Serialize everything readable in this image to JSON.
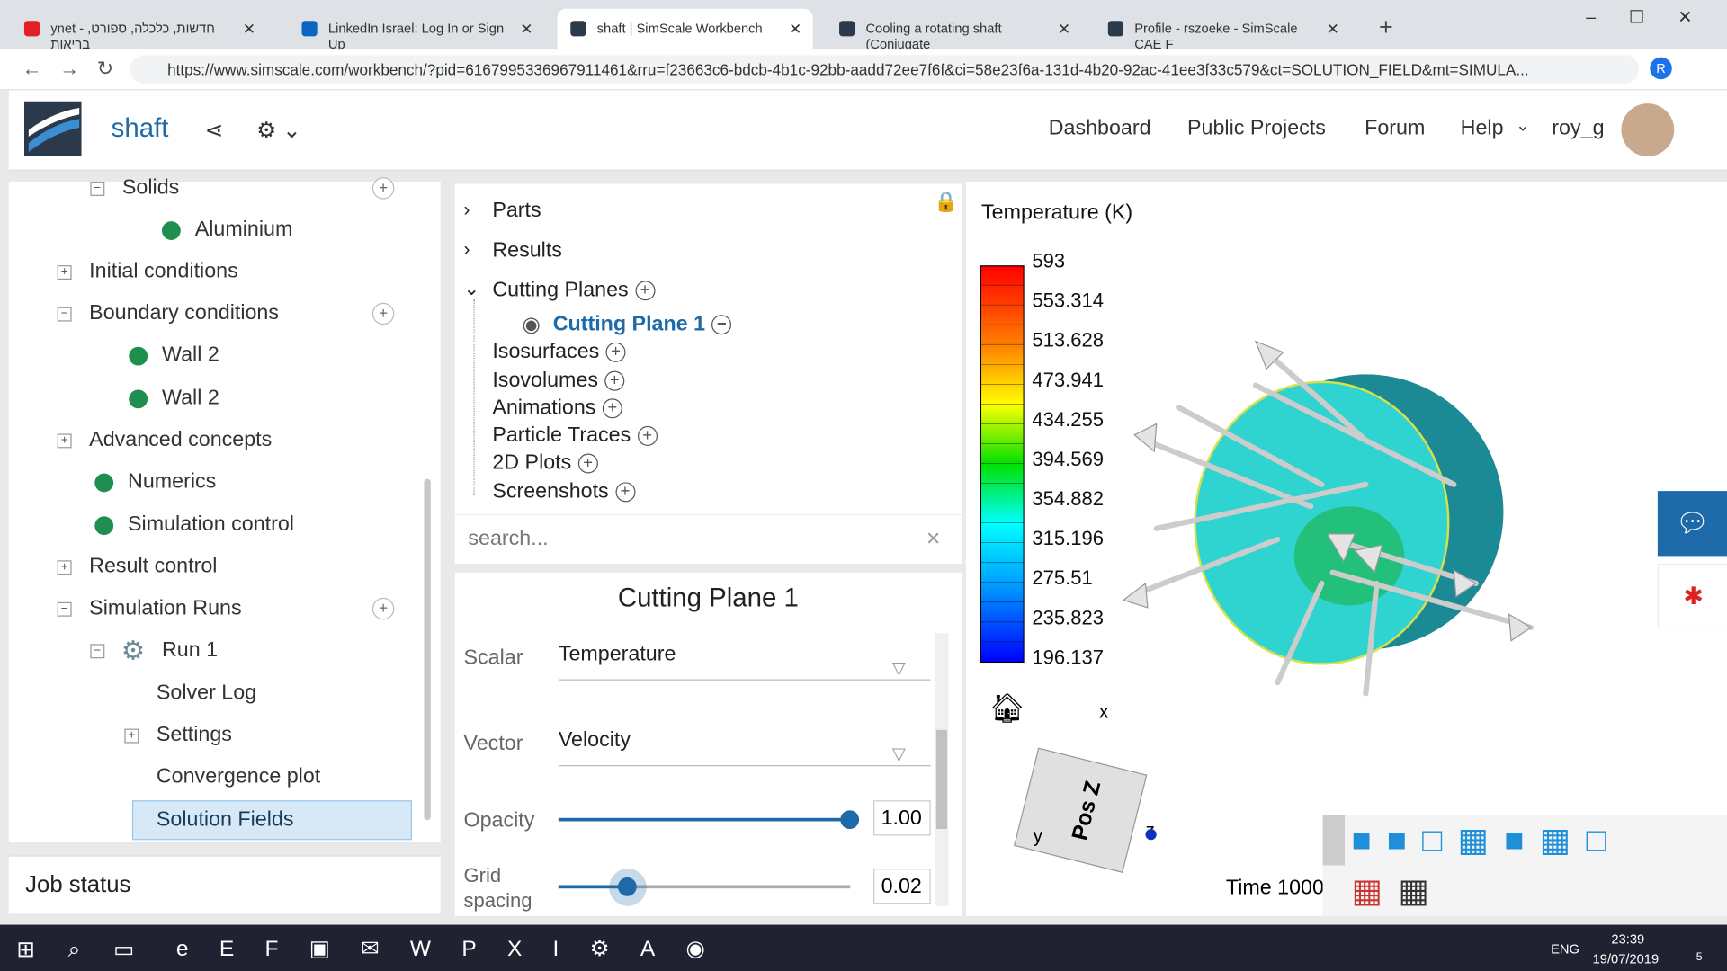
{
  "browser": {
    "tabs": [
      "ynet - חדשות, כלכלה, ספורט, בריאות",
      "LinkedIn Israel: Log In or Sign Up",
      "shaft | SimScale Workbench",
      "Cooling a rotating shaft (Conjugate",
      "Profile - rszoeke - SimScale CAE F"
    ],
    "url": "https://www.simscale.com/workbench/?pid=6167995336967911461&rru=f23663c6-bdcb-4b1c-92bb-aadd72ee7f6f&ci=58e23f6a-131d-4b20-92ac-41ee3f33c579&ct=SOLUTION_FIELD&mt=SIMULA...",
    "profile_initial": "R"
  },
  "header": {
    "project": "shaft",
    "nav": [
      "Dashboard",
      "Public Projects",
      "Forum",
      "Help",
      "roy_g"
    ]
  },
  "tree": [
    "Solids",
    "Aluminium",
    "Initial conditions",
    "Boundary conditions",
    "Wall 2",
    "Wall 2",
    "Advanced concepts",
    "Numerics",
    "Simulation control",
    "Result control",
    "Simulation Runs",
    "Run 1",
    "Solver Log",
    "Settings",
    "Convergence plot",
    "Solution Fields"
  ],
  "job_status": "Job status",
  "results_tree": [
    "Parts",
    "Results",
    "Cutting Planes",
    "Cutting Plane 1",
    "Isosurfaces",
    "Isovolumes",
    "Animations",
    "Particle Traces",
    "2D Plots",
    "Screenshots"
  ],
  "search_placeholder": "search...",
  "panel": {
    "title": "Cutting Plane 1",
    "scalar_label": "Scalar",
    "scalar": "Temperature",
    "vector_label": "Vector",
    "vector": "Velocity",
    "opacity_label": "Opacity",
    "opacity": "1.00",
    "grid_label": "Grid spacing",
    "grid": "0.02"
  },
  "legend": {
    "title": "Temperature (K)",
    "labels": [
      "593",
      "553.314",
      "513.628",
      "473.941",
      "434.255",
      "394.569",
      "354.882",
      "315.196",
      "275.51",
      "235.823",
      "196.137"
    ]
  },
  "axes": {
    "x": "x",
    "y": "y",
    "z": "z",
    "face": "Pos Z"
  },
  "time": "Time 1000",
  "taskbar": {
    "lang": "ENG",
    "time": "23:39",
    "date": "19/07/2019",
    "notifications": "5"
  }
}
